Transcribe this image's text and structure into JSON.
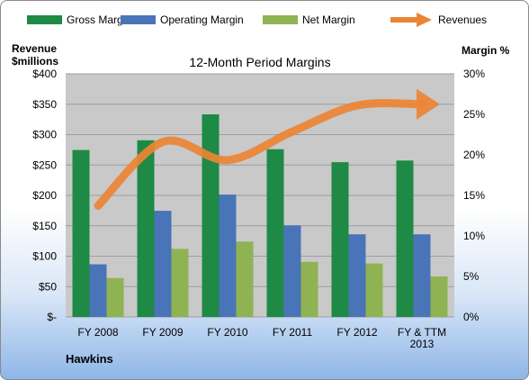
{
  "chart_data": {
    "type": "bar",
    "title": "12-Month Period Margins",
    "left_axis_label_line1": "Revenue",
    "left_axis_label_line2": "$millions",
    "right_axis_label": "Margin %",
    "footer_label": "Hawkins",
    "categories": [
      [
        "FY 2008"
      ],
      [
        "FY 2009"
      ],
      [
        "FY 2010"
      ],
      [
        "FY 2011"
      ],
      [
        "FY 2012"
      ],
      [
        "FY & TTM",
        "2013"
      ]
    ],
    "left_ticks": [
      "$-",
      "$50",
      "$100",
      "$150",
      "$200",
      "$250",
      "$300",
      "$350",
      "$400"
    ],
    "right_ticks": [
      "0%",
      "5%",
      "10%",
      "15%",
      "20%",
      "25%",
      "30%"
    ],
    "ylim_left": [
      0,
      400
    ],
    "ylim_right": [
      0,
      30
    ],
    "grid": true,
    "legend_position": "top",
    "colors": {
      "gross": "#1e8a45",
      "operating": "#4a74b8",
      "net": "#8fb352",
      "revenues": "#ec8434",
      "plot_bg": "#c9c9c9"
    },
    "series": [
      {
        "name": "Gross Margin",
        "axis": "right",
        "values": [
          20.6,
          21.8,
          25.0,
          20.7,
          19.1,
          19.3
        ]
      },
      {
        "name": "Operating Margin",
        "axis": "right",
        "values": [
          6.5,
          13.1,
          15.1,
          11.3,
          10.2,
          10.2
        ]
      },
      {
        "name": "Net Margin",
        "axis": "right",
        "values": [
          4.8,
          8.4,
          9.3,
          6.8,
          6.6,
          5.0
        ]
      },
      {
        "name": "Revenues",
        "axis": "left",
        "type": "line",
        "values": [
          183,
          288,
          258,
          305,
          348,
          350
        ]
      }
    ]
  }
}
